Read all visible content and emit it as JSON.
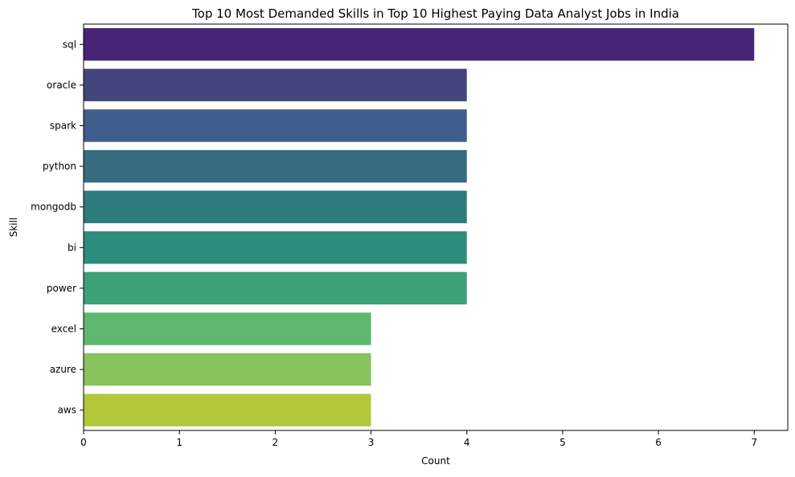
{
  "chart_data": {
    "type": "bar",
    "orientation": "horizontal",
    "title": "Top 10 Most Demanded Skills in Top 10 Highest Paying Data Analyst Jobs in India",
    "xlabel": "Count",
    "ylabel": "Skill",
    "categories": [
      "sql",
      "oracle",
      "spark",
      "python",
      "mongodb",
      "bi",
      "power",
      "excel",
      "azure",
      "aws"
    ],
    "values": [
      7,
      4,
      4,
      4,
      4,
      4,
      4,
      3,
      3,
      3
    ],
    "xlim": [
      0,
      7.35
    ],
    "xticks": [
      "0",
      "1",
      "2",
      "3",
      "4",
      "5",
      "6",
      "7"
    ],
    "grid": false,
    "legend": "none",
    "colors": [
      "#482475",
      "#45457e",
      "#3f5d8a",
      "#376b7f",
      "#2e7b7c",
      "#2e8d7a",
      "#3da177",
      "#5db76d",
      "#86c35a",
      "#b2c83a"
    ]
  }
}
